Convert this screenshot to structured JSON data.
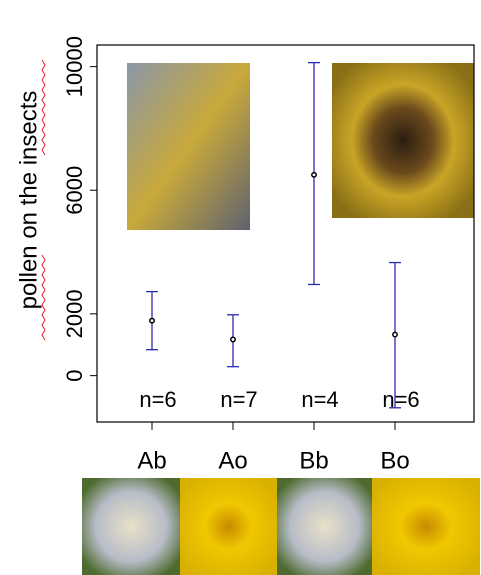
{
  "chart_data": {
    "type": "errorbar",
    "ylabel": "pollen on the insects",
    "categories": [
      "Ab",
      "Ao",
      "Bb",
      "Bo"
    ],
    "values": [
      1780,
      1170,
      6500,
      1330
    ],
    "lower": [
      840,
      290,
      2950,
      -1040
    ],
    "upper": [
      2720,
      1970,
      10130,
      3660
    ],
    "color": "#2b2bb0",
    "annotations": [
      "n=6",
      "n=7",
      "n=4",
      "n=6"
    ],
    "ylim": [
      -1500,
      10700
    ],
    "yticks": [
      0,
      2000,
      6000,
      10000
    ]
  }
}
